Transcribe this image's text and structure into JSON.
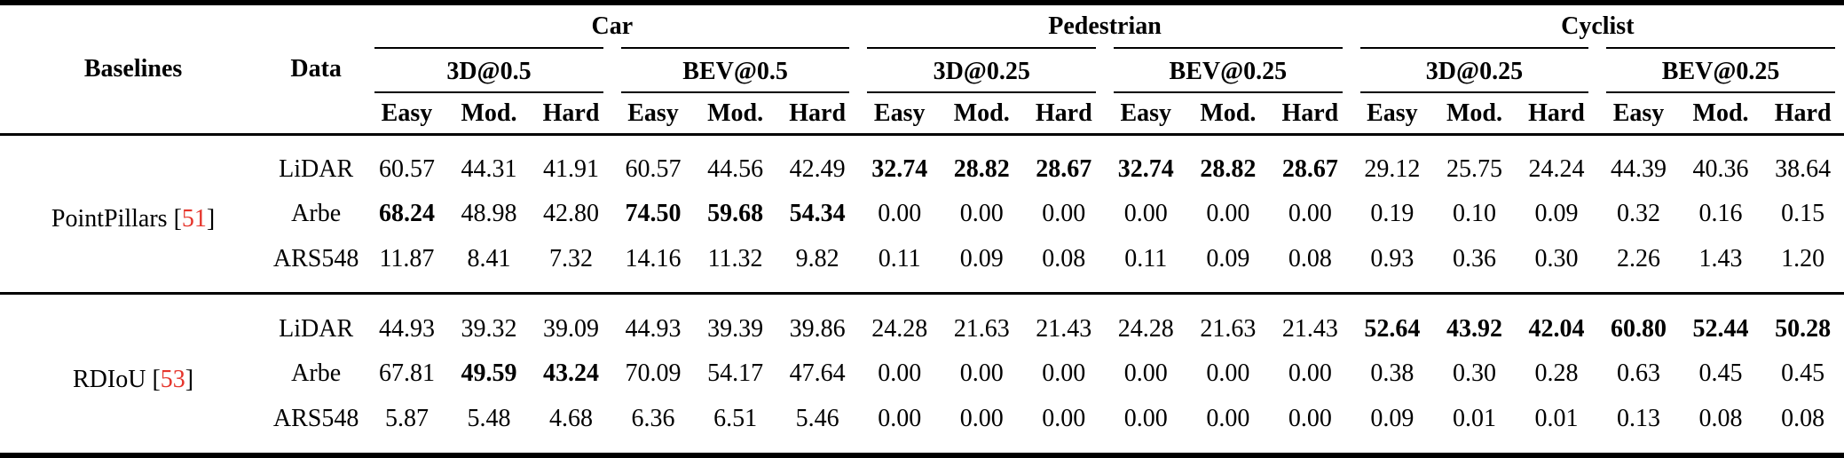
{
  "table": {
    "colors": {
      "citation": "#e5342b",
      "text": "#000000",
      "background": "#ffffff",
      "rule": "#000000"
    },
    "citation_brackets": {
      "open": "[",
      "close": "]"
    },
    "header": {
      "baselines": "Baselines",
      "data": "Data",
      "categories": [
        {
          "label": "Car",
          "metrics": [
            "3D@0.5",
            "BEV@0.5"
          ]
        },
        {
          "label": "Pedestrian",
          "metrics": [
            "3D@0.25",
            "BEV@0.25"
          ]
        },
        {
          "label": "Cyclist",
          "metrics": [
            "3D@0.25",
            "BEV@0.25"
          ]
        }
      ],
      "difficulty": [
        "Easy",
        "Mod.",
        "Hard"
      ]
    },
    "groups": [
      {
        "baseline": {
          "name": "PointPillars",
          "cite": "51"
        },
        "rows": [
          {
            "data": "LiDAR",
            "values": [
              "60.57",
              "44.31",
              "41.91",
              "60.57",
              "44.56",
              "42.49",
              "32.74",
              "28.82",
              "28.67",
              "32.74",
              "28.82",
              "28.67",
              "29.12",
              "25.75",
              "24.24",
              "44.39",
              "40.36",
              "38.64"
            ],
            "bold": [
              6,
              7,
              8,
              9,
              10,
              11
            ]
          },
          {
            "data": "Arbe",
            "values": [
              "68.24",
              "48.98",
              "42.80",
              "74.50",
              "59.68",
              "54.34",
              "0.00",
              "0.00",
              "0.00",
              "0.00",
              "0.00",
              "0.00",
              "0.19",
              "0.10",
              "0.09",
              "0.32",
              "0.16",
              "0.15"
            ],
            "bold": [
              0,
              3,
              4,
              5
            ]
          },
          {
            "data": "ARS548",
            "values": [
              "11.87",
              "8.41",
              "7.32",
              "14.16",
              "11.32",
              "9.82",
              "0.11",
              "0.09",
              "0.08",
              "0.11",
              "0.09",
              "0.08",
              "0.93",
              "0.36",
              "0.30",
              "2.26",
              "1.43",
              "1.20"
            ],
            "bold": []
          }
        ]
      },
      {
        "baseline": {
          "name": "RDIoU",
          "cite": "53"
        },
        "rows": [
          {
            "data": "LiDAR",
            "values": [
              "44.93",
              "39.32",
              "39.09",
              "44.93",
              "39.39",
              "39.86",
              "24.28",
              "21.63",
              "21.43",
              "24.28",
              "21.63",
              "21.43",
              "52.64",
              "43.92",
              "42.04",
              "60.80",
              "52.44",
              "50.28"
            ],
            "bold": [
              12,
              13,
              14,
              15,
              16,
              17
            ]
          },
          {
            "data": "Arbe",
            "values": [
              "67.81",
              "49.59",
              "43.24",
              "70.09",
              "54.17",
              "47.64",
              "0.00",
              "0.00",
              "0.00",
              "0.00",
              "0.00",
              "0.00",
              "0.38",
              "0.30",
              "0.28",
              "0.63",
              "0.45",
              "0.45"
            ],
            "bold": [
              1,
              2
            ]
          },
          {
            "data": "ARS548",
            "values": [
              "5.87",
              "5.48",
              "4.68",
              "6.36",
              "6.51",
              "5.46",
              "0.00",
              "0.00",
              "0.00",
              "0.00",
              "0.00",
              "0.00",
              "0.09",
              "0.01",
              "0.01",
              "0.13",
              "0.08",
              "0.08"
            ],
            "bold": []
          }
        ]
      }
    ]
  }
}
